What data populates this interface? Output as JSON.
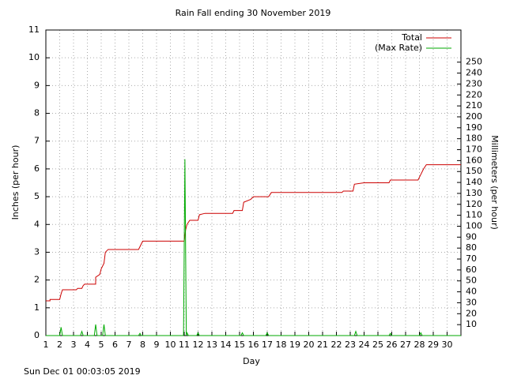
{
  "chart_data": {
    "type": "line",
    "title": "Rain Fall ending 30 November 2019",
    "x_label": "Day",
    "y_label": "Inches (per hour)",
    "y2_label": "Millimeters (per hour)",
    "footer": "Sun Dec 01 00:03:05 2019",
    "xlim": [
      1,
      31
    ],
    "xticks": [
      1,
      2,
      3,
      4,
      5,
      6,
      7,
      8,
      9,
      10,
      11,
      12,
      13,
      14,
      15,
      16,
      17,
      18,
      19,
      20,
      21,
      22,
      23,
      24,
      25,
      26,
      27,
      28,
      29,
      30
    ],
    "ylim": [
      0,
      11
    ],
    "yticks": [
      0,
      1,
      2,
      3,
      4,
      5,
      6,
      7,
      8,
      9,
      10,
      11
    ],
    "y2lim": [
      0,
      279.4
    ],
    "y2ticks": [
      10,
      20,
      30,
      40,
      50,
      60,
      70,
      80,
      90,
      100,
      110,
      120,
      130,
      140,
      150,
      160,
      170,
      180,
      190,
      200,
      210,
      220,
      230,
      240,
      250
    ],
    "grid": true,
    "legend": "top-right",
    "series": [
      {
        "name": "Total",
        "color": "#cc0000",
        "x": [
          1,
          1.3,
          1.3,
          2.0,
          2.1,
          2.2,
          3.2,
          3.3,
          3.6,
          3.7,
          3.8,
          4.6,
          4.6,
          4.9,
          5.0,
          5.2,
          5.3,
          5.5,
          7.7,
          7.9,
          8.0,
          11.0,
          11.1,
          11.2,
          11.4,
          12.0,
          12.1,
          12.5,
          14.5,
          14.6,
          15.2,
          15.3,
          15.8,
          16.0,
          17.1,
          17.3,
          22.4,
          22.5,
          23.2,
          23.3,
          24.0,
          25.8,
          25.9,
          27.9,
          28.1,
          28.3,
          28.5,
          31
        ],
        "values": [
          1.25,
          1.25,
          1.3,
          1.3,
          1.5,
          1.65,
          1.65,
          1.7,
          1.7,
          1.8,
          1.85,
          1.85,
          2.1,
          2.2,
          2.4,
          2.6,
          3.0,
          3.1,
          3.1,
          3.3,
          3.4,
          3.4,
          3.8,
          4.0,
          4.15,
          4.15,
          4.35,
          4.4,
          4.4,
          4.5,
          4.5,
          4.8,
          4.9,
          5.0,
          5.0,
          5.15,
          5.15,
          5.2,
          5.2,
          5.45,
          5.5,
          5.5,
          5.6,
          5.6,
          5.8,
          6.0,
          6.15,
          6.15
        ]
      },
      {
        "name": "(Max Rate)",
        "color": "#00aa00",
        "x": [
          1,
          2.0,
          2.1,
          2.2,
          3.5,
          3.6,
          3.7,
          4.5,
          4.6,
          4.7,
          5.1,
          5.2,
          5.3,
          7.7,
          7.8,
          7.9,
          10.95,
          11.05,
          11.1,
          11.15,
          11.2,
          11.3,
          11.9,
          12.0,
          12.1,
          15.1,
          15.2,
          15.3,
          16.9,
          17.0,
          17.1,
          23.3,
          23.4,
          23.5,
          25.8,
          25.9,
          26.0,
          28.0,
          28.1,
          28.2,
          31
        ],
        "values": [
          0,
          0,
          0.3,
          0,
          0,
          0.15,
          0,
          0,
          0.4,
          0,
          0,
          0.4,
          0,
          0,
          0.08,
          0,
          0,
          6.35,
          3.2,
          0,
          0.1,
          0,
          0,
          0.1,
          0,
          0,
          0.1,
          0,
          0,
          0.1,
          0,
          0,
          0.15,
          0,
          0,
          0.08,
          0,
          0,
          0.1,
          0,
          0
        ]
      }
    ]
  }
}
